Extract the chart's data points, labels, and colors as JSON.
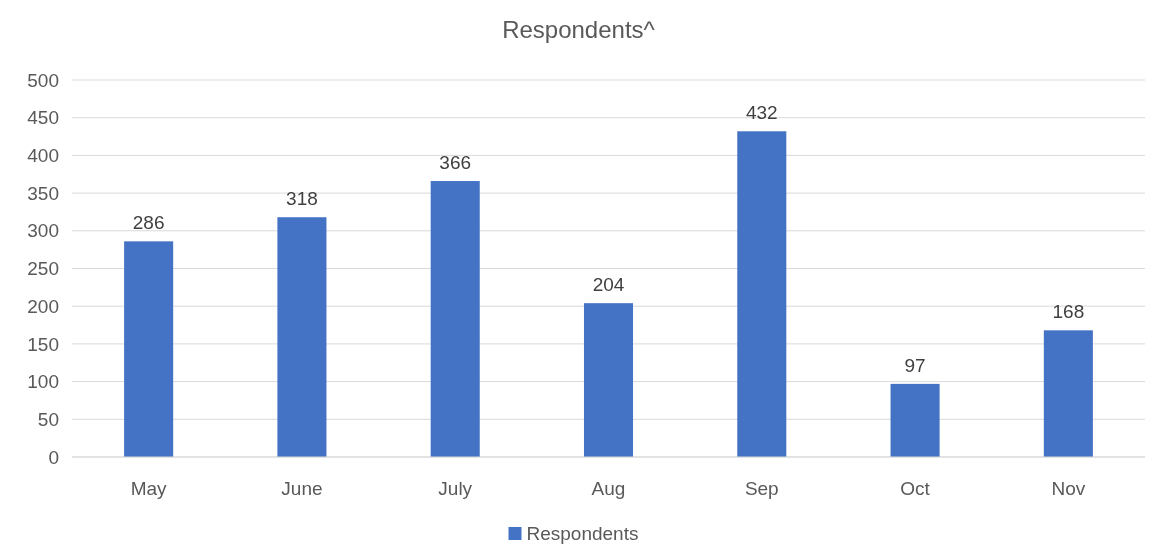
{
  "chart_data": {
    "type": "bar",
    "title": "Respondents^",
    "categories": [
      "May",
      "June",
      "July",
      "Aug",
      "Sep",
      "Oct",
      "Nov"
    ],
    "series": [
      {
        "name": "Respondents",
        "color": "#4472c4",
        "values": [
          286,
          318,
          366,
          204,
          432,
          97,
          168
        ]
      }
    ],
    "ylim": [
      0,
      500
    ],
    "yticks": [
      0,
      50,
      100,
      150,
      200,
      250,
      300,
      350,
      400,
      450,
      500
    ],
    "grid": "y",
    "legend": "bottom",
    "data_labels": true
  }
}
